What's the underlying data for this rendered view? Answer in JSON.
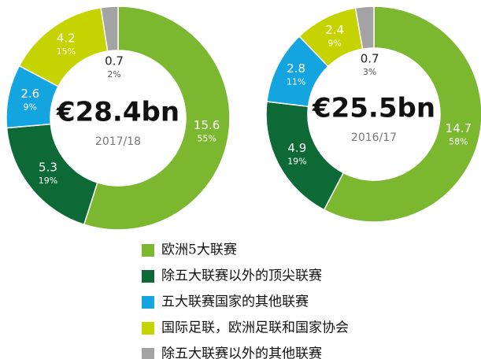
{
  "chart_data": [
    {
      "type": "donut",
      "center_label": "€28.4bn",
      "period": "2017/18",
      "values": [
        15.6,
        5.3,
        2.6,
        4.2,
        0.7
      ],
      "percent_labels": [
        "55%",
        "19%",
        "9%",
        "15%",
        "2%"
      ]
    },
    {
      "type": "donut",
      "center_label": "€25.5bn",
      "period": "2016/17",
      "values": [
        14.7,
        4.9,
        2.8,
        2.4,
        0.7
      ],
      "percent_labels": [
        "58%",
        "19%",
        "11%",
        "9%",
        "3%"
      ]
    }
  ],
  "legend": [
    {
      "name": "欧洲5大联赛",
      "color": "#7cb82f"
    },
    {
      "name": "除五大联赛以外的顶尖联赛",
      "color": "#0d6a36"
    },
    {
      "name": "五大联赛国家的其他联赛",
      "color": "#14a4e0"
    },
    {
      "name": "国际足联，欧洲足联和国家协会",
      "color": "#c5d300"
    },
    {
      "name": "除五大联赛以外的其他联赛",
      "color": "#a3a3a3"
    }
  ]
}
